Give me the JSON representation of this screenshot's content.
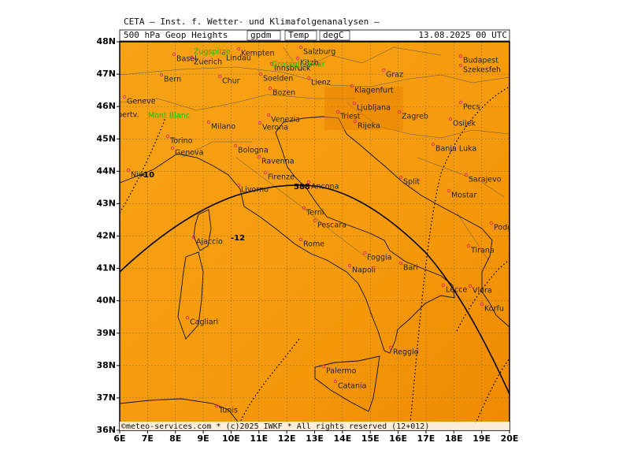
{
  "header": {
    "title": "CETA — Inst. f. Wetter- und Klimafolgenanalysen —",
    "fields": [
      "500 hPa Geop Heights",
      "gpdm",
      "Temp",
      "degC"
    ],
    "date": "13.08.2025 00 UTC"
  },
  "lat_labels": [
    "48N",
    "47N",
    "46N",
    "45N",
    "44N",
    "43N",
    "42N",
    "41N",
    "40N",
    "39N",
    "38N",
    "37N",
    "36N"
  ],
  "lon_labels": [
    "6E",
    "7E",
    "8E",
    "9E",
    "10E",
    "11E",
    "12E",
    "13E",
    "14E",
    "15E",
    "16E",
    "17E",
    "18E",
    "19E",
    "20E"
  ],
  "cities": [
    "Basel",
    "Zuerich",
    "Lindau",
    "Kempten",
    "Salzburg",
    "Bern",
    "Chur",
    "Innsbruck",
    "Kitzb.",
    "Soelden",
    "Lienz",
    "Graz",
    "Budapest",
    "Szekesfeh",
    "Geneve",
    "Albertv.",
    "Bozen",
    "Klagenfurt",
    "Ljubljana",
    "Triest",
    "Rijeka",
    "Zagreb",
    "Pecs",
    "Osijek",
    "Milano",
    "Verona",
    "Venezia",
    "Torino",
    "Genova",
    "Bologna",
    "Ravenna",
    "Banja Luka",
    "Nice",
    "Firenze",
    "Livorno",
    "Ancona",
    "Split",
    "Sarajevo",
    "Mostar",
    "Terni",
    "Pescara",
    "Podgorica",
    "Ajaccio",
    "Rome",
    "Tirana",
    "Foggia",
    "Bari",
    "Napoli",
    "Lecce",
    "Vlora",
    "Korfu",
    "Cagliari",
    "Palermo",
    "Catania",
    "Reggio",
    "Tunis"
  ],
  "peaks": [
    "Mont Blanc",
    "Zugspitze",
    "Grossglockner"
  ],
  "contour_labels": [
    "588",
    "-10",
    "-12"
  ],
  "footer": "©meteo-services.com * (c)2025 IWKF * All rights reserved (12+012)"
}
